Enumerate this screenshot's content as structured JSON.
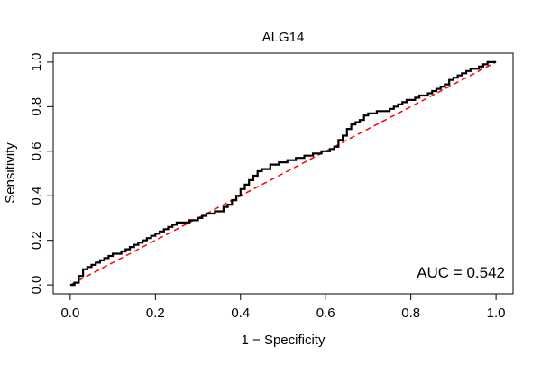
{
  "chart_data": {
    "type": "line",
    "title": "ALG14",
    "xlabel": "1 − Specificity",
    "ylabel": "Sensitivity",
    "xlim": [
      -0.04,
      1.04
    ],
    "ylim": [
      -0.04,
      1.04
    ],
    "x_ticks": [
      "0.0",
      "0.2",
      "0.4",
      "0.6",
      "0.8",
      "1.0"
    ],
    "y_ticks": [
      "0.0",
      "0.2",
      "0.4",
      "0.6",
      "0.8",
      "1.0"
    ],
    "grid": false,
    "annotation": "AUC = 0.542",
    "reference_line": {
      "x": [
        0,
        1
      ],
      "y": [
        0,
        1
      ],
      "color": "#ff0000",
      "style": "dashed"
    },
    "series": [
      {
        "color": "#000000",
        "x": [
          0.0,
          0.01,
          0.02,
          0.02,
          0.03,
          0.03,
          0.04,
          0.05,
          0.06,
          0.07,
          0.08,
          0.09,
          0.1,
          0.12,
          0.13,
          0.14,
          0.15,
          0.16,
          0.17,
          0.18,
          0.19,
          0.2,
          0.21,
          0.22,
          0.23,
          0.24,
          0.25,
          0.26,
          0.28,
          0.3,
          0.31,
          0.32,
          0.34,
          0.36,
          0.37,
          0.38,
          0.39,
          0.4,
          0.41,
          0.42,
          0.43,
          0.44,
          0.45,
          0.47,
          0.49,
          0.51,
          0.53,
          0.55,
          0.57,
          0.59,
          0.61,
          0.62,
          0.63,
          0.64,
          0.65,
          0.66,
          0.67,
          0.68,
          0.69,
          0.7,
          0.72,
          0.74,
          0.75,
          0.76,
          0.77,
          0.78,
          0.79,
          0.81,
          0.82,
          0.84,
          0.85,
          0.86,
          0.87,
          0.88,
          0.89,
          0.9,
          0.91,
          0.92,
          0.93,
          0.94,
          0.96,
          0.97,
          0.98,
          1.0
        ],
        "y": [
          0.0,
          0.01,
          0.02,
          0.04,
          0.05,
          0.07,
          0.08,
          0.09,
          0.1,
          0.11,
          0.12,
          0.13,
          0.14,
          0.15,
          0.16,
          0.17,
          0.18,
          0.19,
          0.2,
          0.21,
          0.22,
          0.23,
          0.24,
          0.25,
          0.26,
          0.27,
          0.28,
          0.28,
          0.29,
          0.3,
          0.31,
          0.32,
          0.33,
          0.35,
          0.36,
          0.38,
          0.4,
          0.43,
          0.45,
          0.47,
          0.49,
          0.51,
          0.52,
          0.54,
          0.55,
          0.56,
          0.57,
          0.58,
          0.59,
          0.6,
          0.61,
          0.62,
          0.65,
          0.67,
          0.7,
          0.72,
          0.73,
          0.74,
          0.76,
          0.77,
          0.78,
          0.78,
          0.79,
          0.8,
          0.81,
          0.82,
          0.83,
          0.84,
          0.85,
          0.86,
          0.87,
          0.88,
          0.89,
          0.9,
          0.92,
          0.93,
          0.94,
          0.95,
          0.96,
          0.97,
          0.98,
          0.99,
          1.0,
          1.0
        ]
      }
    ]
  }
}
